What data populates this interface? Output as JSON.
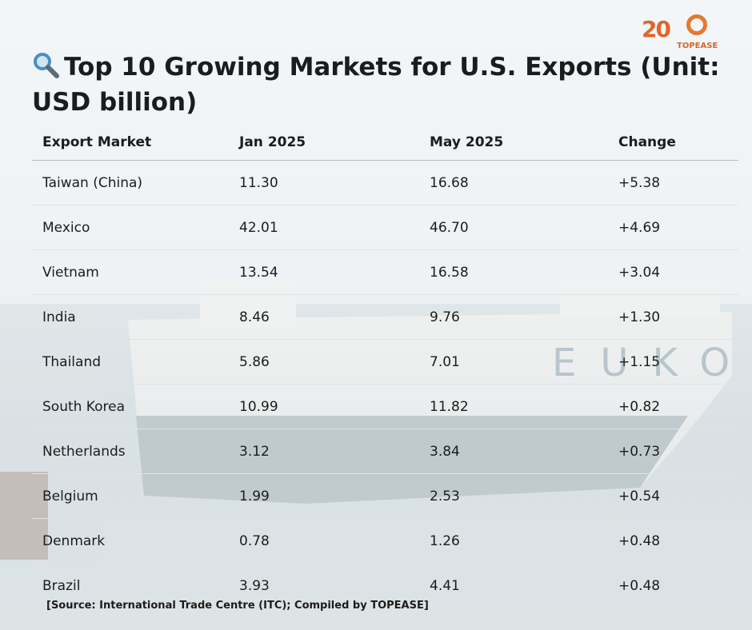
{
  "logo": {
    "number": "20",
    "brand": "TOPEASE"
  },
  "header": {
    "title": "Top 10 Growing Markets for U.S. Exports (Unit: USD billion)"
  },
  "table": {
    "headers": [
      "Export Market",
      "Jan 2025",
      "May 2025",
      "Change"
    ],
    "rows": [
      [
        "Taiwan (China)",
        "11.30",
        "16.68",
        "+5.38"
      ],
      [
        "Mexico",
        "42.01",
        "46.70",
        "+4.69"
      ],
      [
        "Vietnam",
        "13.54",
        "16.58",
        "+3.04"
      ],
      [
        "India",
        "8.46",
        "9.76",
        "+1.30"
      ],
      [
        "Thailand",
        "5.86",
        "7.01",
        "+1.15"
      ],
      [
        "South Korea",
        "10.99",
        "11.82",
        "+0.82"
      ],
      [
        "Netherlands",
        "3.12",
        "3.84",
        "+0.73"
      ],
      [
        "Belgium",
        "1.99",
        "2.53",
        "+0.54"
      ],
      [
        "Denmark",
        "0.78",
        "1.26",
        "+0.48"
      ],
      [
        "Brazil",
        "3.93",
        "4.41",
        "+0.48"
      ]
    ]
  },
  "footer": {
    "source": "[Source: International Trade Centre (ITC); Compiled by TOPEASE]"
  }
}
